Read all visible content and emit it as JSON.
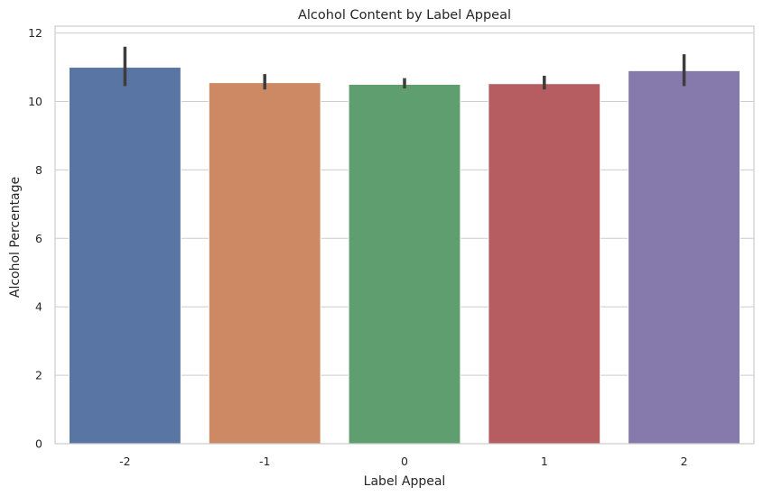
{
  "chart_data": {
    "type": "bar",
    "title": "Alcohol Content by Label Appeal",
    "xlabel": "Label Appeal",
    "ylabel": "Alcohol Percentage",
    "categories": [
      "-2",
      "-1",
      "0",
      "1",
      "2"
    ],
    "values": [
      11.0,
      10.55,
      10.5,
      10.52,
      10.9
    ],
    "error_low": [
      10.45,
      10.35,
      10.38,
      10.35,
      10.45
    ],
    "error_high": [
      11.6,
      10.8,
      10.68,
      10.75,
      11.38
    ],
    "ylim": [
      0,
      12.2
    ],
    "yticks": [
      0,
      2,
      4,
      6,
      8,
      10,
      12
    ],
    "grid": "horizontal",
    "colors": [
      "#5875a4",
      "#cc8963",
      "#5f9e6e",
      "#b55d60",
      "#857aab"
    ],
    "error_color": "#3d3d3d"
  }
}
